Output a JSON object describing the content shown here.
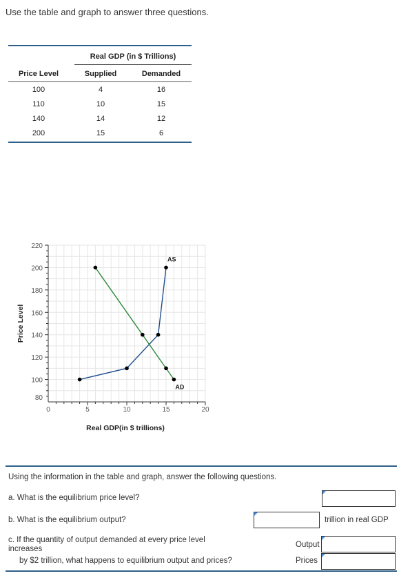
{
  "intro": "Use the table and graph to answer three questions.",
  "table": {
    "group_header": "Real GDP (in $ Trillions)",
    "columns": [
      "Price Level",
      "Supplied",
      "Demanded"
    ],
    "rows": [
      [
        "100",
        "4",
        "16"
      ],
      [
        "110",
        "10",
        "15"
      ],
      [
        "140",
        "14",
        "12"
      ],
      [
        "200",
        "15",
        "6"
      ]
    ]
  },
  "chart_data": {
    "type": "line",
    "xlabel": "Real GDP(in $ trillions)",
    "ylabel": "Price Level",
    "xlim": [
      0,
      20
    ],
    "ylim": [
      80,
      220
    ],
    "x_ticks": [
      "0",
      "5",
      "10",
      "15",
      "20"
    ],
    "y_ticks": [
      "80",
      "100",
      "120",
      "140",
      "160",
      "180",
      "200",
      "220"
    ],
    "grid": true,
    "series": [
      {
        "name": "AS",
        "color": "#1f4e8c",
        "points": [
          [
            4,
            100
          ],
          [
            10,
            110
          ],
          [
            14,
            140
          ],
          [
            15,
            200
          ]
        ]
      },
      {
        "name": "AD",
        "color": "#2e8b3a",
        "points": [
          [
            6,
            200
          ],
          [
            12,
            140
          ],
          [
            15,
            110
          ],
          [
            16,
            100
          ]
        ]
      }
    ]
  },
  "questions": {
    "intro": "Using the information in the table and graph, answer the following questions.",
    "a": "a. What is the equilibrium price level?",
    "b": "b. What is the equilibrium output?",
    "b_unit": "trillion in real GDP",
    "c_line1": "c. If the quantity of output demanded at every price level",
    "c_line2": "increases",
    "c_line3": "by $2 trillion, what happens to equilibrium output and prices?",
    "c_output_label": "Output",
    "c_prices_label": "Prices"
  }
}
